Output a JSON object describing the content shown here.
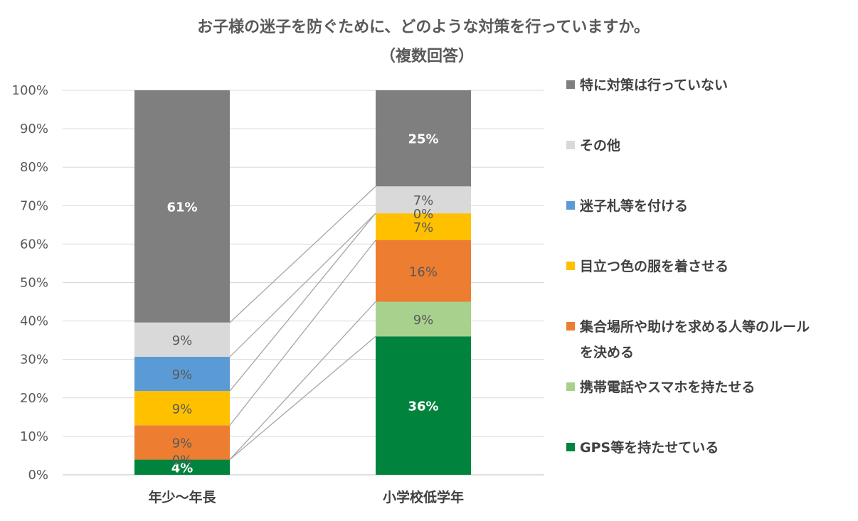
{
  "chart_data": {
    "type": "bar",
    "stacked": true,
    "percent_stacked": true,
    "title": "お子様の迷子を防ぐために、どのような対策を行っていますか。",
    "subtitle": "（複数回答）",
    "categories": [
      "年少～年長",
      "小学校低学年"
    ],
    "ylim": [
      0,
      100
    ],
    "yticks": [
      "0%",
      "10%",
      "20%",
      "30%",
      "40%",
      "50%",
      "60%",
      "70%",
      "80%",
      "90%",
      "100%"
    ],
    "grid": true,
    "legend_position": "right",
    "series": [
      {
        "name": "GPS等を持たせている",
        "values": [
          4,
          36
        ],
        "labels": [
          "4%",
          "36%"
        ],
        "color": "#00843d",
        "label_style": "bold"
      },
      {
        "name": "携帯電話やスマホを持たせる",
        "values": [
          0,
          9
        ],
        "labels": [
          "0%",
          "9%"
        ],
        "color": "#a9d18e",
        "label_style": "normal"
      },
      {
        "name": "集合場所や助けを求める人等のルールを決める",
        "values": [
          9,
          16
        ],
        "labels": [
          "9%",
          "16%"
        ],
        "color": "#ed7d31",
        "label_style": "normal"
      },
      {
        "name": "目立つ色の服を着させる",
        "values": [
          9,
          7
        ],
        "labels": [
          "9%",
          "7%"
        ],
        "color": "#ffc000",
        "label_style": "normal"
      },
      {
        "name": "迷子札等を付ける",
        "values": [
          9,
          0
        ],
        "labels": [
          "9%",
          "0%"
        ],
        "color": "#5b9bd5",
        "label_style": "normal"
      },
      {
        "name": "その他",
        "values": [
          9,
          7
        ],
        "labels": [
          "9%",
          "7%"
        ],
        "color": "#d9d9d9",
        "label_style": "normal"
      },
      {
        "name": "特に対策は行っていない",
        "values": [
          61,
          25
        ],
        "labels": [
          "61%",
          "25%"
        ],
        "color": "#7f7f7f",
        "label_style": "bold"
      }
    ],
    "legend_lines": [
      [
        "特に対策は行っていない"
      ],
      [
        "その他"
      ],
      [
        "迷子札等を付ける"
      ],
      [
        "目立つ色の服を着させる"
      ],
      [
        "集合場所や助けを求める人等のルール",
        "を決める"
      ],
      [
        "携帯電話やスマホを持たせる"
      ],
      [
        "GPS等を持たせている"
      ]
    ]
  }
}
